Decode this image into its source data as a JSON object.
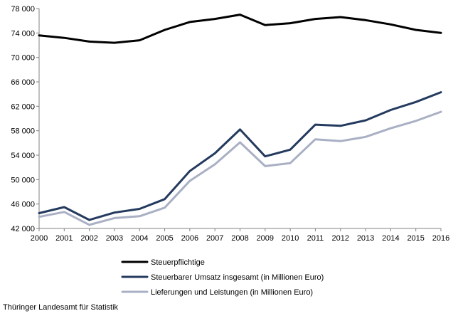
{
  "chart_data": {
    "type": "line",
    "title": "",
    "xlabel": "",
    "ylabel": "",
    "x": [
      2000,
      2001,
      2002,
      2003,
      2004,
      2005,
      2006,
      2007,
      2008,
      2009,
      2010,
      2011,
      2012,
      2013,
      2014,
      2015,
      2016
    ],
    "x_ticks": [
      "2000",
      "2001",
      "2002",
      "2003",
      "2004",
      "2005",
      "2006",
      "2007",
      "2008",
      "2009",
      "2010",
      "2011",
      "2012",
      "2013",
      "2014",
      "2015",
      "2016"
    ],
    "ylim": [
      42000,
      78000
    ],
    "y_ticks": [
      "42 000",
      "46 000",
      "50 000",
      "54 000",
      "58 000",
      "62 000",
      "66 000",
      "70 000",
      "74 000",
      "78 000"
    ],
    "grid": false,
    "legend_position": "bottom",
    "series": [
      {
        "name": "Steuerpflichtige",
        "color": "#000000",
        "values": [
          73600,
          73200,
          72600,
          72400,
          72800,
          74500,
          75800,
          76300,
          77000,
          75300,
          75600,
          76300,
          76600,
          76100,
          75400,
          74500,
          74000
        ]
      },
      {
        "name": "Steuerbarer Umsatz insgesamt (in Millionen Euro)",
        "color": "#243a5e",
        "values": [
          44500,
          45500,
          43400,
          44600,
          45200,
          46800,
          51400,
          54300,
          58200,
          53800,
          54900,
          59000,
          58800,
          59700,
          61400,
          62700,
          64300
        ]
      },
      {
        "name": "Lieferungen und Leistungen (in Millionen Euro)",
        "color": "#a9b0c4",
        "values": [
          43900,
          44700,
          42600,
          43700,
          44000,
          45400,
          49800,
          52500,
          56100,
          52200,
          52700,
          56600,
          56300,
          57000,
          58400,
          59600,
          61100
        ]
      }
    ]
  },
  "source": "Thüringer Landesamt für Statistik"
}
